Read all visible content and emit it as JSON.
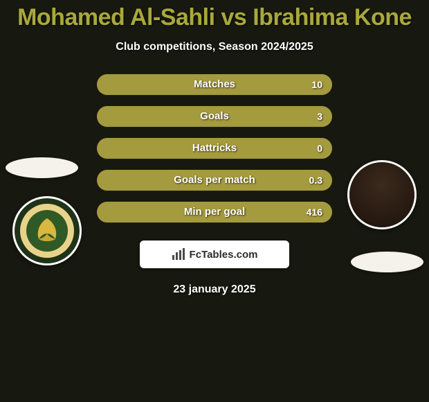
{
  "page": {
    "background_color": "#17180f",
    "text_color": "#ffffff"
  },
  "header": {
    "title": "Mohamed Al-Sahli vs Ibrahima Kone",
    "title_color": "#a9a83c",
    "subtitle": "Club competitions, Season 2024/2025"
  },
  "players": {
    "left": {
      "name": "Mohamed Al-Sahli",
      "avatar_bg": "#1f3318",
      "club_oval_color": "#f4f2eb",
      "crest_primary": "#2f5a25",
      "crest_accent": "#d8b83e"
    },
    "right": {
      "name": "Ibrahima Kone",
      "avatar_bg": "#4d3626",
      "club_oval_color": "#f4f2eb"
    }
  },
  "bars": {
    "track_color": "#a49a3e",
    "fill_color": "#a49a3e",
    "label_color": "#ffffff",
    "items": [
      {
        "label": "Matches",
        "left": "",
        "right": "10",
        "fill_from": "right",
        "fill_pct": 100
      },
      {
        "label": "Goals",
        "left": "",
        "right": "3",
        "fill_from": "right",
        "fill_pct": 100
      },
      {
        "label": "Hattricks",
        "left": "",
        "right": "0",
        "fill_from": "right",
        "fill_pct": 100
      },
      {
        "label": "Goals per match",
        "left": "",
        "right": "0.3",
        "fill_from": "right",
        "fill_pct": 100
      },
      {
        "label": "Min per goal",
        "left": "",
        "right": "416",
        "fill_from": "right",
        "fill_pct": 100
      }
    ]
  },
  "branding": {
    "text": "FcTables.com",
    "bg_color": "#ffffff",
    "text_color": "#2b2b2b",
    "icon_color": "#4a4a4a"
  },
  "footer": {
    "date": "23 january 2025"
  }
}
